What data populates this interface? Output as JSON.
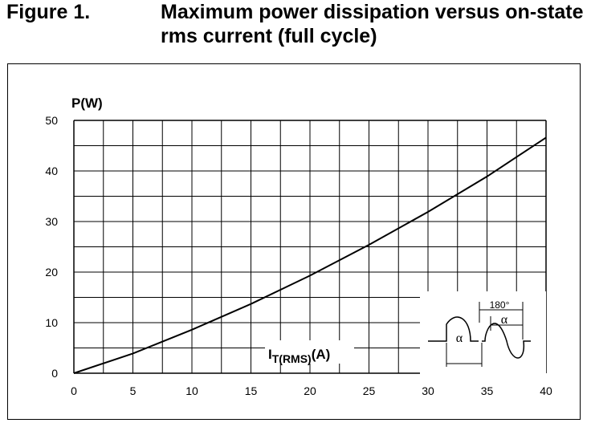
{
  "figure": {
    "number": "Figure 1.",
    "title": "Maximum power dissipation versus on-state rms current (full cycle)"
  },
  "chart_data": {
    "type": "line",
    "title": "Maximum power dissipation versus on-state rms current (full cycle)",
    "ylabel": "P(W)",
    "xlabel_main": "I",
    "xlabel_sub": "T(RMS)",
    "xlabel_unit": "(A)",
    "xlim": [
      0,
      40
    ],
    "ylim": [
      0,
      50
    ],
    "x_ticks": [
      0,
      5,
      10,
      15,
      20,
      25,
      30,
      35,
      40
    ],
    "y_ticks": [
      0,
      10,
      20,
      30,
      40,
      50
    ],
    "grid": true,
    "series": [
      {
        "x": [
          0,
          5,
          10,
          15,
          20,
          25,
          30,
          35,
          40
        ],
        "y": [
          0,
          3.9,
          8.6,
          13.7,
          19.3,
          25.4,
          31.9,
          38.9,
          46.6
        ]
      }
    ],
    "inset": {
      "alpha_label": "α",
      "angle_label": "180°"
    }
  }
}
